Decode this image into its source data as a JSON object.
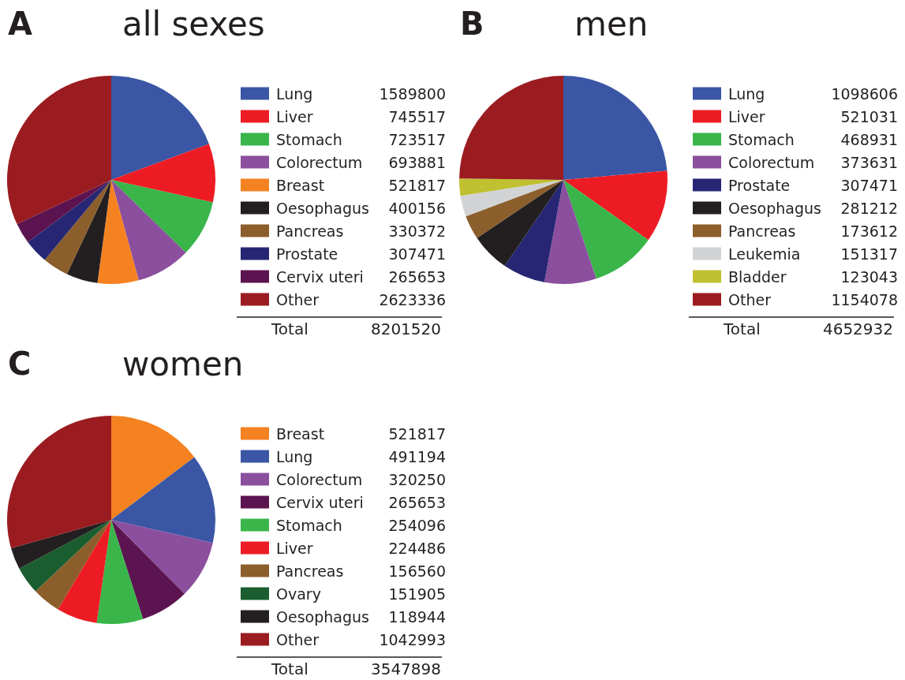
{
  "chart_data": [
    {
      "type": "pie",
      "title": "all sexes",
      "annotations": [
        "A",
        "Total",
        "8201520"
      ],
      "legend": "right",
      "data_labels": true,
      "categories": [
        "Lung",
        "Liver",
        "Stomach",
        "Colorectum",
        "Breast",
        "Oesophagus",
        "Pancreas",
        "Prostate",
        "Cervix uteri",
        "Other"
      ],
      "values": [
        1589800,
        745517,
        723517,
        693881,
        521817,
        400156,
        330372,
        307471,
        265653,
        2623336
      ],
      "colors": [
        "#3a56a5",
        "#ed1c24",
        "#39b54a",
        "#8b4f9e",
        "#f58220",
        "#231f20",
        "#8b5e2b",
        "#262674",
        "#5c1450",
        "#9b1c20"
      ]
    },
    {
      "type": "pie",
      "title": "men",
      "annotations": [
        "B",
        "Total",
        "4652932"
      ],
      "legend": "right",
      "data_labels": true,
      "categories": [
        "Lung",
        "Liver",
        "Stomach",
        "Colorectum",
        "Prostate",
        "Oesophagus",
        "Pancreas",
        "Leukemia",
        "Bladder",
        "Other"
      ],
      "values": [
        1098606,
        521031,
        468931,
        373631,
        307471,
        281212,
        173612,
        151317,
        123043,
        1154078
      ],
      "colors": [
        "#3a56a5",
        "#ed1c24",
        "#39b54a",
        "#8b4f9e",
        "#262674",
        "#231f20",
        "#8b5e2b",
        "#d1d3d4",
        "#c0c030",
        "#9b1c20"
      ]
    },
    {
      "type": "pie",
      "title": "women",
      "annotations": [
        "C",
        "Total",
        "3547898"
      ],
      "legend": "right",
      "data_labels": true,
      "categories": [
        "Breast",
        "Lung",
        "Colorectum",
        "Cervix uteri",
        "Stomach",
        "Liver",
        "Pancreas",
        "Ovary",
        "Oesophagus",
        "Other"
      ],
      "values": [
        521817,
        491194,
        320250,
        265653,
        254096,
        224486,
        156560,
        151905,
        118944,
        1042993
      ],
      "colors": [
        "#f58220",
        "#3a56a5",
        "#8b4f9e",
        "#5c1450",
        "#39b54a",
        "#ed1c24",
        "#8b5e2b",
        "#1a5e30",
        "#231f20",
        "#9b1c20"
      ]
    }
  ]
}
